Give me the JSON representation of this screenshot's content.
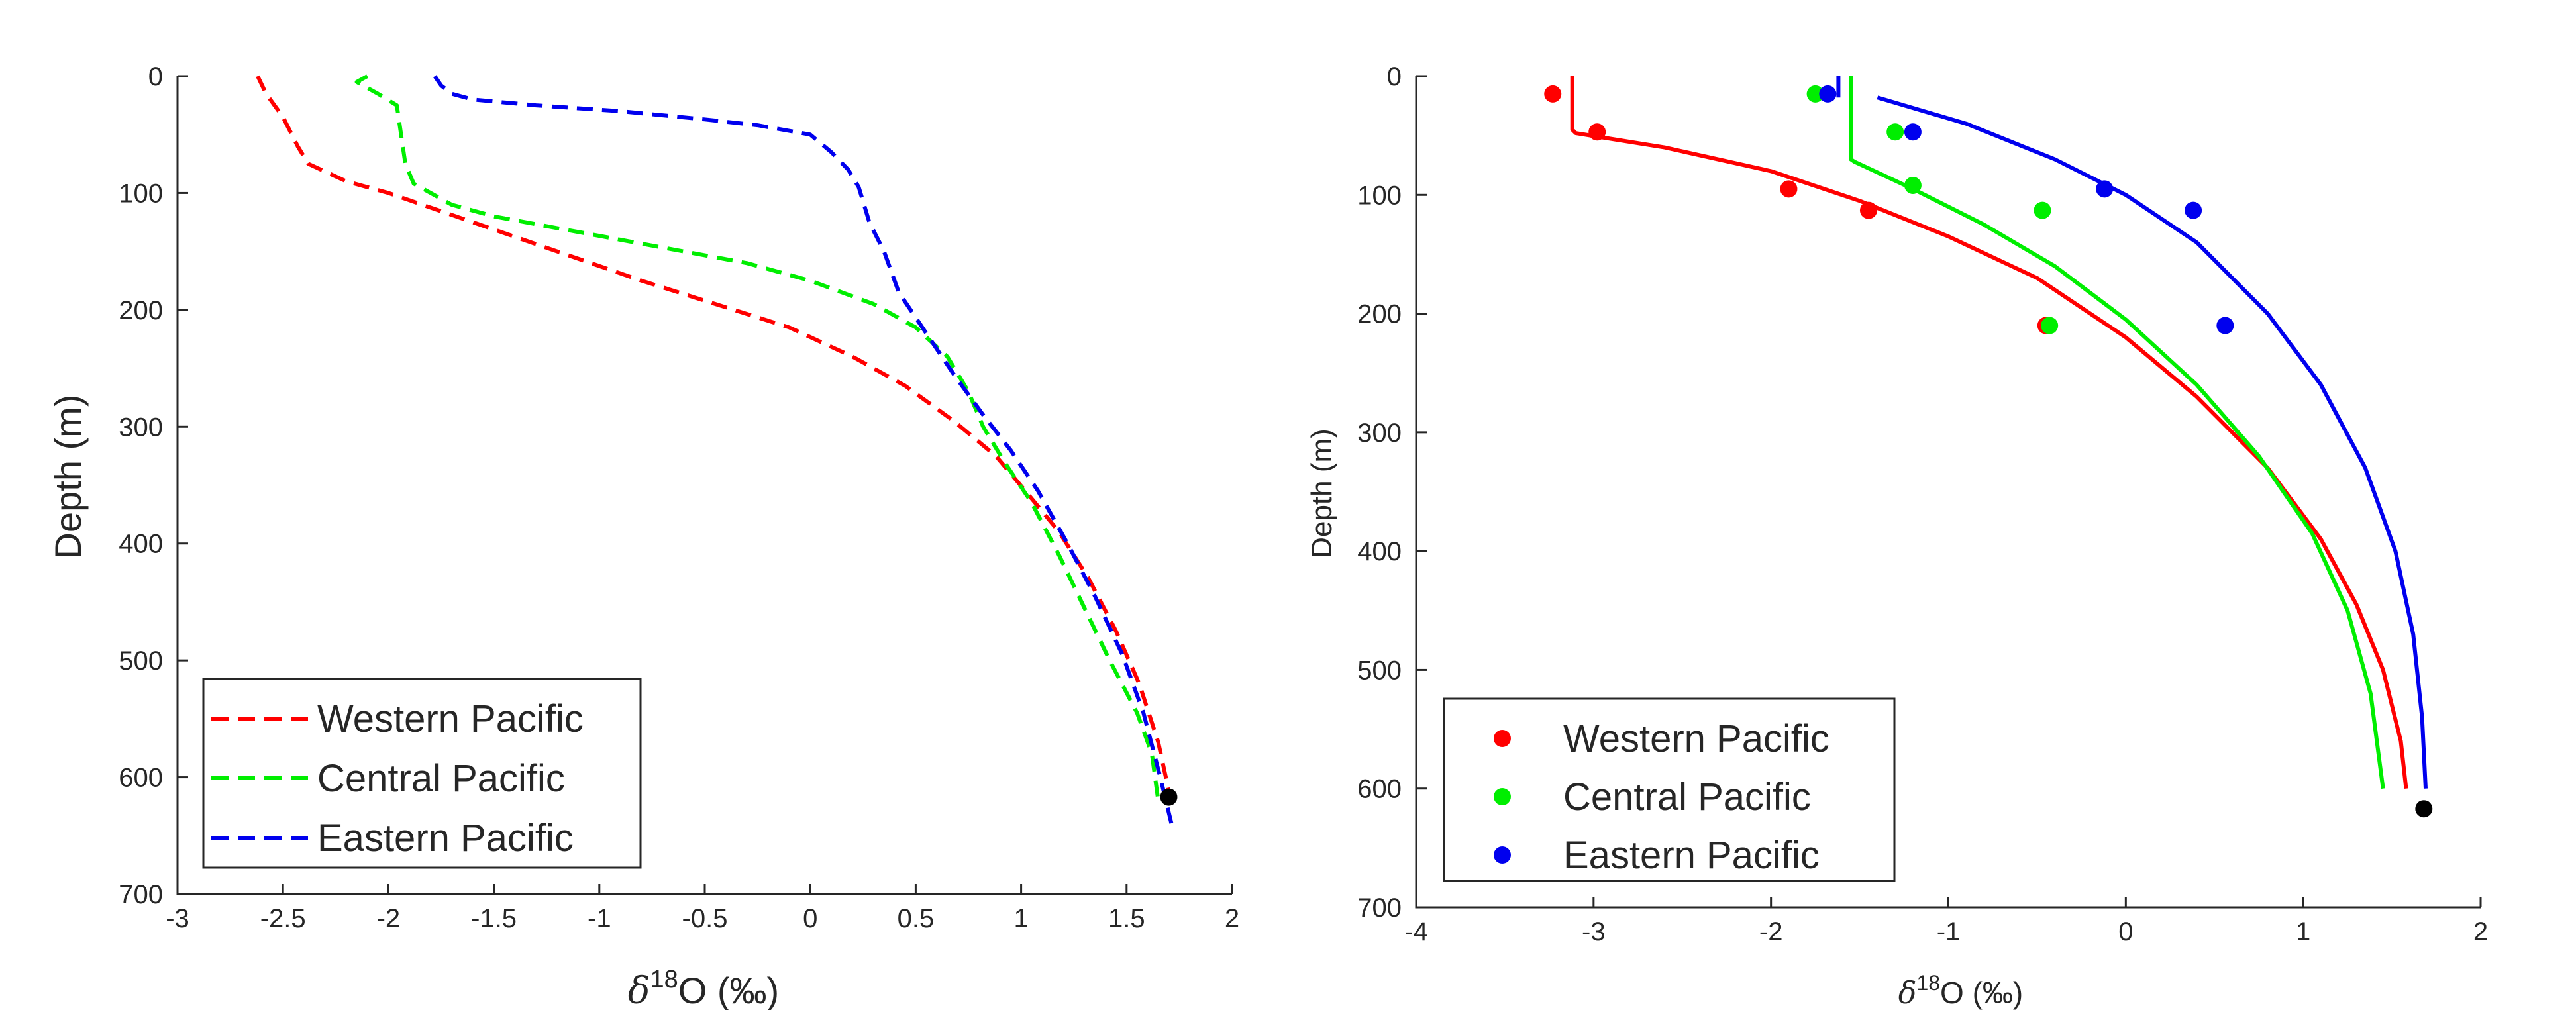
{
  "chart_data": [
    {
      "type": "line",
      "xlabel": {
        "main": "δ",
        "sup": "18",
        "rest": "O (‰)"
      },
      "ylabel": "Depth (m)",
      "xlim": [
        -3,
        2
      ],
      "ylim": [
        0,
        700
      ],
      "y_reversed": true,
      "grid": false,
      "legend_position": "bottom-left",
      "xticks": [
        -3,
        -2.5,
        -2,
        -1.5,
        -1,
        -0.5,
        0,
        0.5,
        1,
        1.5,
        2
      ],
      "xtick_labels": [
        "-3",
        "-2.5",
        "-2",
        "-1.5",
        "-1",
        "-0.5",
        "0",
        "0.5",
        "1",
        "1.5",
        "2"
      ],
      "yticks": [
        0,
        100,
        200,
        300,
        400,
        500,
        600,
        700
      ],
      "ytick_labels": [
        "0",
        "100",
        "200",
        "300",
        "400",
        "500",
        "600",
        "700"
      ],
      "series": [
        {
          "name": "Western Pacific",
          "color": "#ff0000",
          "style": "dashed",
          "x": [
            -2.62,
            -2.58,
            -2.5,
            -2.43,
            -2.38,
            -2.2,
            -2.0,
            -1.6,
            -1.2,
            -0.8,
            -0.45,
            -0.1,
            0.2,
            0.45,
            0.68,
            0.88,
            1.02,
            1.18,
            1.32,
            1.45,
            1.56,
            1.65,
            1.71
          ],
          "y": [
            0,
            15,
            35,
            60,
            75,
            90,
            100,
            125,
            150,
            175,
            195,
            215,
            240,
            265,
            295,
            325,
            355,
            390,
            430,
            475,
            520,
            570,
            620
          ]
        },
        {
          "name": "Central Pacific",
          "color": "#00ee00",
          "style": "dashed",
          "x": [
            -2.1,
            -2.15,
            -2.05,
            -1.96,
            -1.94,
            -1.92,
            -1.88,
            -1.8,
            -1.7,
            -1.5,
            -1.2,
            -0.9,
            -0.6,
            -0.3,
            0.0,
            0.3,
            0.5,
            0.65,
            0.75,
            0.82,
            0.92,
            1.05,
            1.18,
            1.3,
            1.42,
            1.55,
            1.62,
            1.65
          ],
          "y": [
            0,
            5,
            15,
            25,
            50,
            75,
            92,
            100,
            110,
            120,
            130,
            140,
            150,
            160,
            175,
            195,
            215,
            240,
            270,
            300,
            330,
            365,
            410,
            455,
            500,
            545,
            580,
            620
          ]
        },
        {
          "name": "Eastern Pacific",
          "color": "#0000ee",
          "style": "dashed",
          "x": [
            -1.78,
            -1.75,
            -1.7,
            -1.6,
            -1.3,
            -0.9,
            -0.5,
            -0.25,
            0.0,
            0.1,
            0.18,
            0.23,
            0.28,
            0.35,
            0.42,
            0.55,
            0.68,
            0.82,
            0.95,
            1.08,
            1.22,
            1.35,
            1.48,
            1.58,
            1.66,
            1.72
          ],
          "y": [
            0,
            8,
            15,
            20,
            25,
            30,
            37,
            42,
            50,
            65,
            80,
            95,
            125,
            150,
            185,
            220,
            255,
            290,
            320,
            355,
            400,
            445,
            495,
            545,
            600,
            645
          ]
        }
      ],
      "legend": [
        "Western Pacific",
        "Central Pacific",
        "Eastern Pacific"
      ],
      "marker": {
        "x": 1.7,
        "y": 617,
        "color": "#000000"
      }
    },
    {
      "type": "scatter",
      "xlabel": {
        "main": "δ",
        "sup": "18",
        "rest": "O (‰)"
      },
      "ylabel": "Depth (m)",
      "xlim": [
        -4,
        2
      ],
      "ylim": [
        0,
        700
      ],
      "y_reversed": true,
      "grid": false,
      "legend_position": "bottom-left",
      "xticks": [
        -4,
        -3,
        -2,
        -1,
        0,
        1,
        2
      ],
      "xtick_labels": [
        "-4",
        "-3",
        "-2",
        "-1",
        "0",
        "1",
        "2"
      ],
      "yticks": [
        0,
        100,
        200,
        300,
        400,
        500,
        600,
        700
      ],
      "ytick_labels": [
        "0",
        "100",
        "200",
        "300",
        "400",
        "500",
        "600",
        "700"
      ],
      "series": [
        {
          "name": "Western Pacific",
          "color": "#ff0000",
          "points_x": [
            -3.23,
            -2.98,
            -1.9,
            -1.45,
            -0.45
          ],
          "points_y": [
            15,
            47,
            95,
            113,
            210
          ],
          "fit_x": [
            -3.12,
            -3.12,
            -3.1,
            -2.6,
            -2.0,
            -1.5,
            -1.0,
            -0.5,
            0.0,
            0.4,
            0.8,
            1.1,
            1.3,
            1.45,
            1.55,
            1.58
          ],
          "fit_y": [
            0,
            45,
            48,
            60,
            80,
            105,
            135,
            170,
            220,
            270,
            330,
            390,
            445,
            500,
            560,
            600
          ]
        },
        {
          "name": "Central Pacific",
          "color": "#00ee00",
          "points_x": [
            -1.75,
            -1.3,
            -1.2,
            -0.47,
            -0.43
          ],
          "points_y": [
            15,
            47,
            92,
            113,
            210
          ],
          "fit_x": [
            -1.55,
            -1.55,
            -1.53,
            -1.2,
            -0.8,
            -0.4,
            0.0,
            0.4,
            0.75,
            1.05,
            1.25,
            1.38,
            1.45
          ],
          "fit_y": [
            0,
            70,
            72,
            95,
            125,
            160,
            205,
            260,
            320,
            385,
            450,
            520,
            600
          ]
        },
        {
          "name": "Eastern Pacific",
          "color": "#0000ee",
          "points_x": [
            -1.68,
            -1.2,
            -0.12,
            0.38,
            0.56
          ],
          "points_y": [
            15,
            47,
            95,
            113,
            210
          ],
          "fit_x": [
            -1.4,
            -0.9,
            -0.4,
            0.0,
            0.4,
            0.8,
            1.1,
            1.35,
            1.52,
            1.62,
            1.67,
            1.69
          ],
          "fit_y": [
            18,
            40,
            70,
            100,
            140,
            200,
            260,
            330,
            400,
            470,
            540,
            600
          ]
        },
        {
          "name": "",
          "color": "#0000ee",
          "style": "solid",
          "fit_x": [
            -1.62,
            -1.62
          ],
          "fit_y": [
            0,
            18
          ]
        }
      ],
      "legend": [
        "Western Pacific",
        "Central Pacific",
        "Eastern Pacific"
      ],
      "marker": {
        "x": 1.68,
        "y": 617,
        "color": "#000000"
      }
    }
  ]
}
